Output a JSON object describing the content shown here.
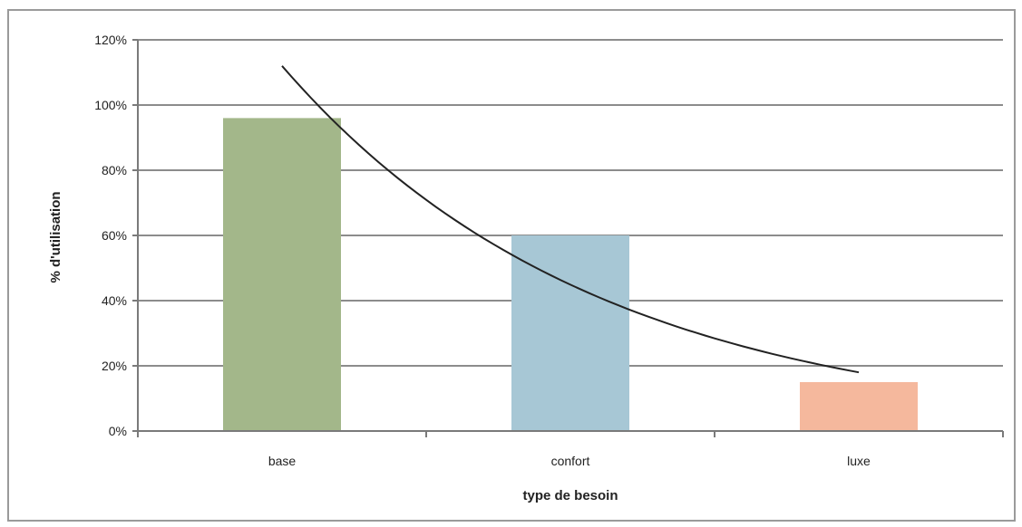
{
  "chart_data": {
    "type": "bar",
    "title": "",
    "xlabel": "type de besoin",
    "ylabel": "% d'utilisation",
    "categories": [
      "base",
      "confort",
      "luxe"
    ],
    "values": [
      96,
      60,
      15
    ],
    "bar_colors": [
      "#a3b78a",
      "#a7c7d5",
      "#f5b89d"
    ],
    "ylim": [
      0,
      120
    ],
    "yticks": [
      0,
      20,
      40,
      60,
      80,
      100,
      120
    ],
    "ytick_labels": [
      "0%",
      "20%",
      "40%",
      "60%",
      "80%",
      "100%",
      "120%"
    ],
    "grid": true,
    "legend": "none",
    "trendline": {
      "type": "exponential",
      "points": [
        {
          "x": "base",
          "y": 112
        },
        {
          "x": "confort",
          "y": 48
        },
        {
          "x": "luxe",
          "y": 18
        }
      ],
      "color": "#222222"
    }
  }
}
